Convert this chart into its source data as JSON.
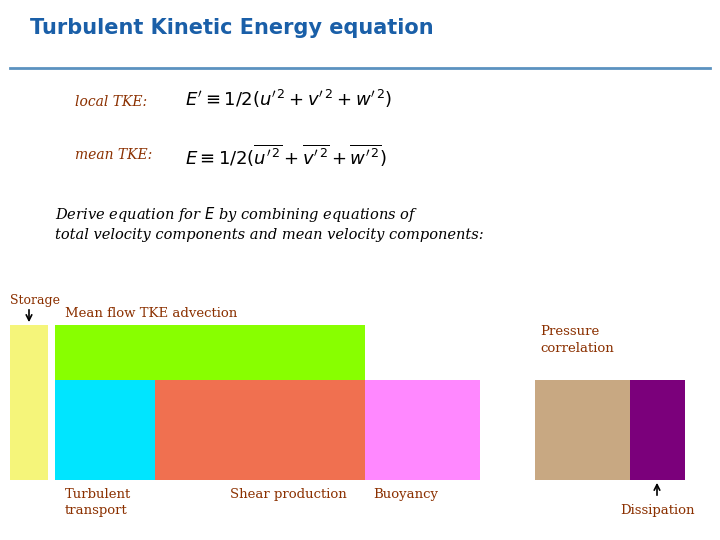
{
  "title": "Turbulent Kinetic Energy equation",
  "title_color": "#1a5fa8",
  "title_fontsize": 15,
  "label_color": "#8B3000",
  "bg_color": "#ffffff",
  "header_line_color": "#5b92c0",
  "local_tke_label": "local TKE:",
  "mean_tke_label": "mean TKE:",
  "derive_text_line1": "Derive equation for $E$ by combining equations of",
  "derive_text_line2": "total velocity components and mean velocity components:",
  "storage_color": "#f5f57a",
  "green_color": "#88ff00",
  "cyan_color": "#00e5ff",
  "salmon_color": "#f07050",
  "pink_color": "#ff88ff",
  "tan_color": "#c8a882",
  "purple_color": "#7b007b",
  "fig_width": 7.2,
  "fig_height": 5.4,
  "dpi": 100
}
